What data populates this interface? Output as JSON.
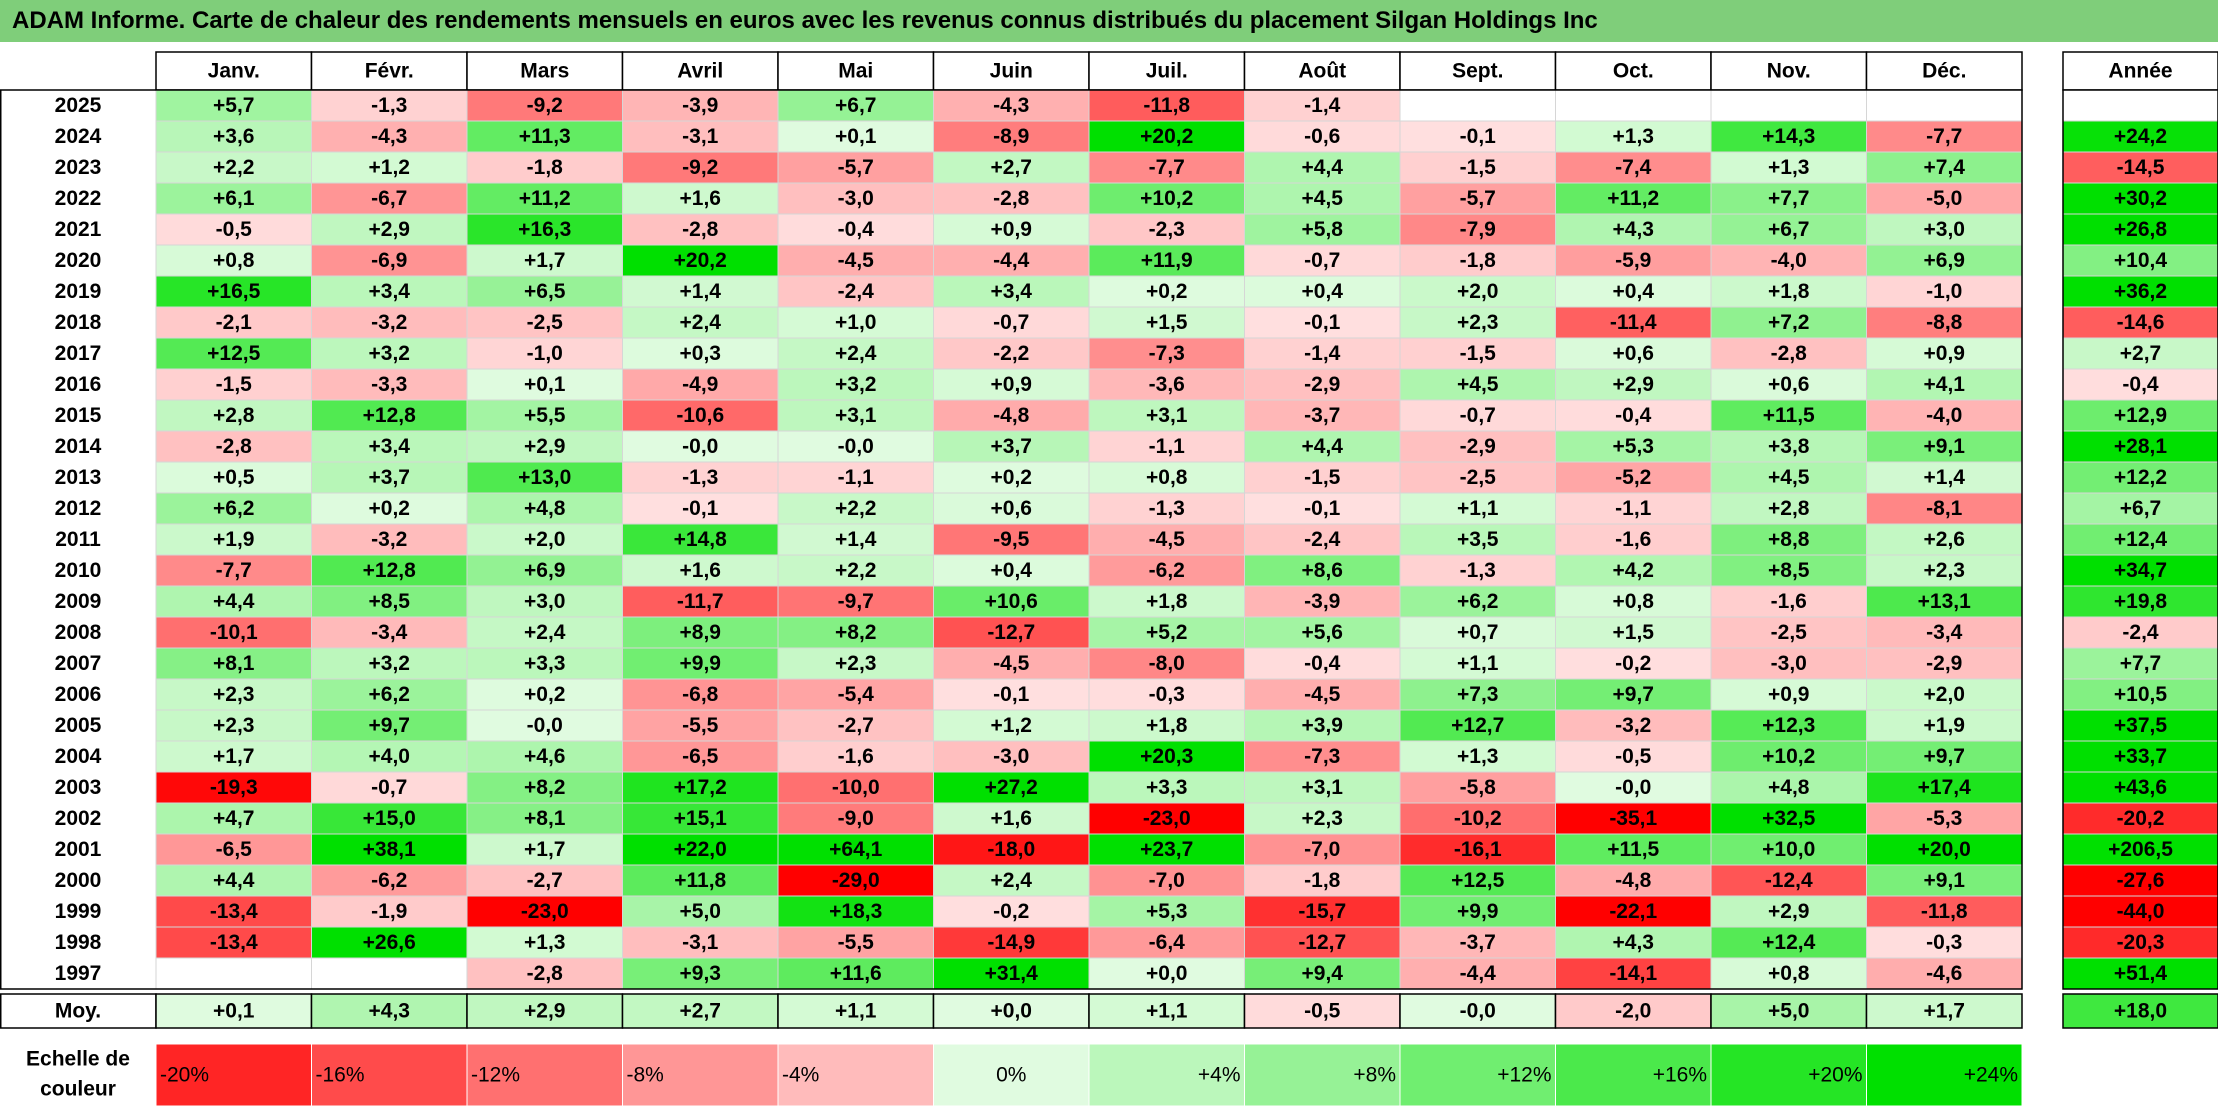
{
  "title": "ADAM Informe. Carte de chaleur des rendements mensuels en euros avec les revenus connus distribués du placement Silgan Holdings Inc",
  "colors": {
    "title_bg": "#7fce7a",
    "positive": "#00e000",
    "negative": "#ff0000",
    "neutral": "#ffffff"
  },
  "chart_data": {
    "type": "heatmap",
    "columns": [
      "Janv.",
      "Févr.",
      "Mars",
      "Avril",
      "Mai",
      "Juin",
      "Juil.",
      "Août",
      "Sept.",
      "Oct.",
      "Nov.",
      "Déc."
    ],
    "year_header": "Année",
    "avg_label": "Moy.",
    "rows": [
      {
        "year": "2025",
        "values": [
          "+5,7",
          "-1,3",
          "-9,2",
          "-3,9",
          "+6,7",
          "-4,3",
          "-11,8",
          "-1,4",
          "",
          "",
          "",
          ""
        ],
        "annual": ""
      },
      {
        "year": "2024",
        "values": [
          "+3,6",
          "-4,3",
          "+11,3",
          "-3,1",
          "+0,1",
          "-8,9",
          "+20,2",
          "-0,6",
          "-0,1",
          "+1,3",
          "+14,3",
          "-7,7"
        ],
        "annual": "+24,2"
      },
      {
        "year": "2023",
        "values": [
          "+2,2",
          "+1,2",
          "-1,8",
          "-9,2",
          "-5,7",
          "+2,7",
          "-7,7",
          "+4,4",
          "-1,5",
          "-7,4",
          "+1,3",
          "+7,4"
        ],
        "annual": "-14,5"
      },
      {
        "year": "2022",
        "values": [
          "+6,1",
          "-6,7",
          "+11,2",
          "+1,6",
          "-3,0",
          "-2,8",
          "+10,2",
          "+4,5",
          "-5,7",
          "+11,2",
          "+7,7",
          "-5,0"
        ],
        "annual": "+30,2"
      },
      {
        "year": "2021",
        "values": [
          "-0,5",
          "+2,9",
          "+16,3",
          "-2,8",
          "-0,4",
          "+0,9",
          "-2,3",
          "+5,8",
          "-7,9",
          "+4,3",
          "+6,7",
          "+3,0"
        ],
        "annual": "+26,8"
      },
      {
        "year": "2020",
        "values": [
          "+0,8",
          "-6,9",
          "+1,7",
          "+20,2",
          "-4,5",
          "-4,4",
          "+11,9",
          "-0,7",
          "-1,8",
          "-5,9",
          "-4,0",
          "+6,9"
        ],
        "annual": "+10,4"
      },
      {
        "year": "2019",
        "values": [
          "+16,5",
          "+3,4",
          "+6,5",
          "+1,4",
          "-2,4",
          "+3,4",
          "+0,2",
          "+0,4",
          "+2,0",
          "+0,4",
          "+1,8",
          "-1,0"
        ],
        "annual": "+36,2"
      },
      {
        "year": "2018",
        "values": [
          "-2,1",
          "-3,2",
          "-2,5",
          "+2,4",
          "+1,0",
          "-0,7",
          "+1,5",
          "-0,1",
          "+2,3",
          "-11,4",
          "+7,2",
          "-8,8"
        ],
        "annual": "-14,6"
      },
      {
        "year": "2017",
        "values": [
          "+12,5",
          "+3,2",
          "-1,0",
          "+0,3",
          "+2,4",
          "-2,2",
          "-7,3",
          "-1,4",
          "-1,5",
          "+0,6",
          "-2,8",
          "+0,9"
        ],
        "annual": "+2,7"
      },
      {
        "year": "2016",
        "values": [
          "-1,5",
          "-3,3",
          "+0,1",
          "-4,9",
          "+3,2",
          "+0,9",
          "-3,6",
          "-2,9",
          "+4,5",
          "+2,9",
          "+0,6",
          "+4,1"
        ],
        "annual": "-0,4"
      },
      {
        "year": "2015",
        "values": [
          "+2,8",
          "+12,8",
          "+5,5",
          "-10,6",
          "+3,1",
          "-4,8",
          "+3,1",
          "-3,7",
          "-0,7",
          "-0,4",
          "+11,5",
          "-4,0"
        ],
        "annual": "+12,9"
      },
      {
        "year": "2014",
        "values": [
          "-2,8",
          "+3,4",
          "+2,9",
          "-0,0",
          "-0,0",
          "+3,7",
          "-1,1",
          "+4,4",
          "-2,9",
          "+5,3",
          "+3,8",
          "+9,1"
        ],
        "annual": "+28,1"
      },
      {
        "year": "2013",
        "values": [
          "+0,5",
          "+3,7",
          "+13,0",
          "-1,3",
          "-1,1",
          "+0,2",
          "+0,8",
          "-1,5",
          "-2,5",
          "-5,2",
          "+4,5",
          "+1,4"
        ],
        "annual": "+12,2"
      },
      {
        "year": "2012",
        "values": [
          "+6,2",
          "+0,2",
          "+4,8",
          "-0,1",
          "+2,2",
          "+0,6",
          "-1,3",
          "-0,1",
          "+1,1",
          "-1,1",
          "+2,8",
          "-8,1"
        ],
        "annual": "+6,7"
      },
      {
        "year": "2011",
        "values": [
          "+1,9",
          "-3,2",
          "+2,0",
          "+14,8",
          "+1,4",
          "-9,5",
          "-4,5",
          "-2,4",
          "+3,5",
          "-1,6",
          "+8,8",
          "+2,6"
        ],
        "annual": "+12,4"
      },
      {
        "year": "2010",
        "values": [
          "-7,7",
          "+12,8",
          "+6,9",
          "+1,6",
          "+2,2",
          "+0,4",
          "-6,2",
          "+8,6",
          "-1,3",
          "+4,2",
          "+8,5",
          "+2,3"
        ],
        "annual": "+34,7"
      },
      {
        "year": "2009",
        "values": [
          "+4,4",
          "+8,5",
          "+3,0",
          "-11,7",
          "-9,7",
          "+10,6",
          "+1,8",
          "-3,9",
          "+6,2",
          "+0,8",
          "-1,6",
          "+13,1"
        ],
        "annual": "+19,8"
      },
      {
        "year": "2008",
        "values": [
          "-10,1",
          "-3,4",
          "+2,4",
          "+8,9",
          "+8,2",
          "-12,7",
          "+5,2",
          "+5,6",
          "+0,7",
          "+1,5",
          "-2,5",
          "-3,4"
        ],
        "annual": "-2,4"
      },
      {
        "year": "2007",
        "values": [
          "+8,1",
          "+3,2",
          "+3,3",
          "+9,9",
          "+2,3",
          "-4,5",
          "-8,0",
          "-0,4",
          "+1,1",
          "-0,2",
          "-3,0",
          "-2,9"
        ],
        "annual": "+7,7"
      },
      {
        "year": "2006",
        "values": [
          "+2,3",
          "+6,2",
          "+0,2",
          "-6,8",
          "-5,4",
          "-0,1",
          "-0,3",
          "-4,5",
          "+7,3",
          "+9,7",
          "+0,9",
          "+2,0"
        ],
        "annual": "+10,5"
      },
      {
        "year": "2005",
        "values": [
          "+2,3",
          "+9,7",
          "-0,0",
          "-5,5",
          "-2,7",
          "+1,2",
          "+1,8",
          "+3,9",
          "+12,7",
          "-3,2",
          "+12,3",
          "+1,9"
        ],
        "annual": "+37,5"
      },
      {
        "year": "2004",
        "values": [
          "+1,7",
          "+4,0",
          "+4,6",
          "-6,5",
          "-1,6",
          "-3,0",
          "+20,3",
          "-7,3",
          "+1,3",
          "-0,5",
          "+10,2",
          "+9,7"
        ],
        "annual": "+33,7"
      },
      {
        "year": "2003",
        "values": [
          "-19,3",
          "-0,7",
          "+8,2",
          "+17,2",
          "-10,0",
          "+27,2",
          "+3,3",
          "+3,1",
          "-5,8",
          "-0,0",
          "+4,8",
          "+17,4"
        ],
        "annual": "+43,6"
      },
      {
        "year": "2002",
        "values": [
          "+4,7",
          "+15,0",
          "+8,1",
          "+15,1",
          "-9,0",
          "+1,6",
          "-23,0",
          "+2,3",
          "-10,2",
          "-35,1",
          "+32,5",
          "-5,3"
        ],
        "annual": "-20,2"
      },
      {
        "year": "2001",
        "values": [
          "-6,5",
          "+38,1",
          "+1,7",
          "+22,0",
          "+64,1",
          "-18,0",
          "+23,7",
          "-7,0",
          "-16,1",
          "+11,5",
          "+10,0",
          "+20,0"
        ],
        "annual": "+206,5"
      },
      {
        "year": "2000",
        "values": [
          "+4,4",
          "-6,2",
          "-2,7",
          "+11,8",
          "-29,0",
          "+2,4",
          "-7,0",
          "-1,8",
          "+12,5",
          "-4,8",
          "-12,4",
          "+9,1"
        ],
        "annual": "-27,6"
      },
      {
        "year": "1999",
        "values": [
          "-13,4",
          "-1,9",
          "-23,0",
          "+5,0",
          "+18,3",
          "-0,2",
          "+5,3",
          "-15,7",
          "+9,9",
          "-22,1",
          "+2,9",
          "-11,8"
        ],
        "annual": "-44,0"
      },
      {
        "year": "1998",
        "values": [
          "-13,4",
          "+26,6",
          "+1,3",
          "-3,1",
          "-5,5",
          "-14,9",
          "-6,4",
          "-12,7",
          "-3,7",
          "+4,3",
          "+12,4",
          "-0,3"
        ],
        "annual": "-20,3"
      },
      {
        "year": "1997",
        "values": [
          "",
          "",
          "-2,8",
          "+9,3",
          "+11,6",
          "+31,4",
          "+0,0",
          "+9,4",
          "-4,4",
          "-14,1",
          "+0,8",
          "-4,6"
        ],
        "annual": "+51,4"
      }
    ],
    "averages": [
      "+0,1",
      "+4,3",
      "+2,9",
      "+2,7",
      "+1,1",
      "+0,0",
      "+1,1",
      "-0,5",
      "-0,0",
      "-2,0",
      "+5,0",
      "+1,7"
    ],
    "average_annual": "+18,0",
    "scale": {
      "label_line1": "Echelle de",
      "label_line2": "couleur",
      "stops": [
        "-20%",
        "-16%",
        "-12%",
        "-8%",
        "-4%",
        "0%",
        "+4%",
        "+8%",
        "+12%",
        "+16%",
        "+20%",
        "+24%"
      ]
    }
  }
}
